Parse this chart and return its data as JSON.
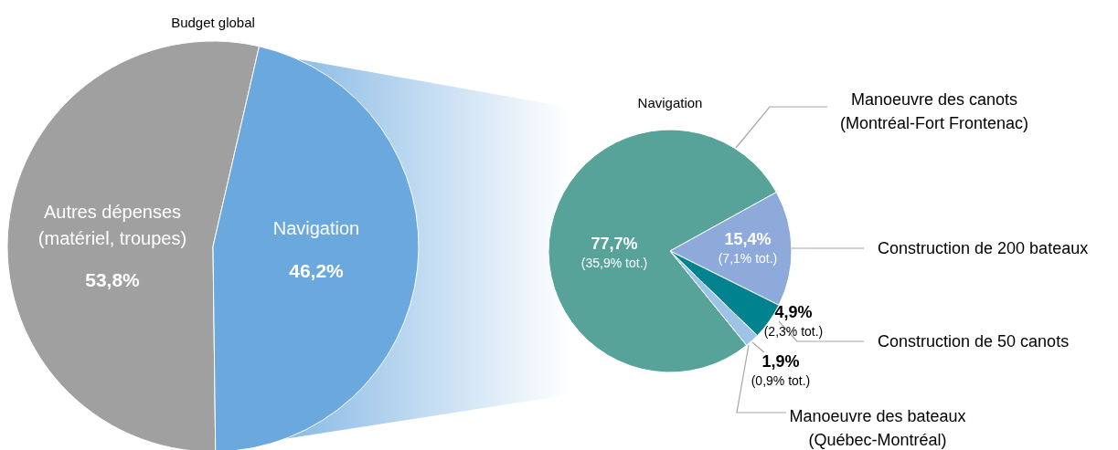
{
  "chart_data": [
    {
      "type": "pie",
      "title": "Budget global",
      "categories": [
        "Autres dépenses\n(matériel, troupes)",
        "Navigation"
      ],
      "values": [
        53.8,
        46.2
      ],
      "colors": [
        "#a0a0a0",
        "#6aa8de"
      ],
      "value_labels": [
        "53,8%",
        "46,2%"
      ]
    },
    {
      "type": "pie",
      "title": "Navigation",
      "categories": [
        "Manoeuvre des canots\n(Montréal-Fort Frontenac)",
        "Construction de 200 bateaux",
        "Construction de 50 canots",
        "Manoeuvre des bateaux\n(Québec-Montréal)"
      ],
      "values": [
        77.7,
        15.4,
        4.9,
        1.9
      ],
      "colors": [
        "#57a39a",
        "#8eaadb",
        "#00838f",
        "#9dc3e6"
      ],
      "value_labels": [
        "77,7%\n(35,9% tot.)",
        "15,4%\n(7,1% tot.)",
        "4,9%\n(2,3% tot.)",
        "1,9%\n(0,9% tot.)"
      ]
    }
  ]
}
